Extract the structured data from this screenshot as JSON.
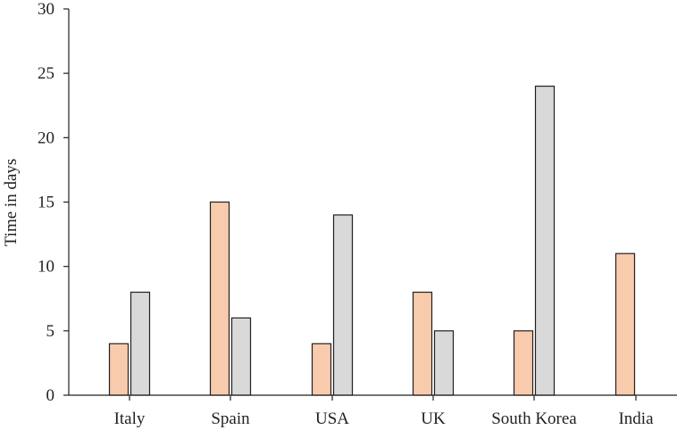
{
  "chart_data": {
    "type": "bar",
    "title": "",
    "xlabel": "",
    "ylabel": "Time in days",
    "ylim": [
      0,
      30
    ],
    "yticks": [
      0,
      5,
      10,
      15,
      20,
      25,
      30
    ],
    "categories": [
      "Italy",
      "Spain",
      "USA",
      "UK",
      "South Korea",
      "India"
    ],
    "series": [
      {
        "color": "#f8cbad",
        "values": [
          4,
          15,
          4,
          8,
          5,
          11
        ]
      },
      {
        "color": "#d9d9d9",
        "values": [
          8,
          6,
          14,
          5,
          24,
          null
        ]
      }
    ],
    "grid": false,
    "legend": "none"
  }
}
